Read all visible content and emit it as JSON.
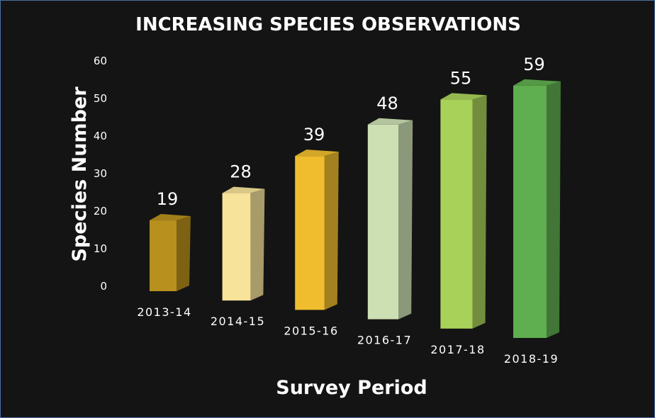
{
  "chart_data": {
    "type": "bar",
    "title": "INCREASING SPECIES OBSERVATIONS",
    "xlabel": "Survey Period",
    "ylabel": "Species Number",
    "ylim": [
      0,
      60
    ],
    "yticks": [
      "0",
      "10",
      "20",
      "30",
      "40",
      "50",
      "60"
    ],
    "categories": [
      "2013-14",
      "2014-15",
      "2015-16",
      "2016-17",
      "2017-18",
      "2018-19"
    ],
    "values": [
      19,
      28,
      39,
      48,
      55,
      59
    ],
    "value_labels": [
      "19",
      "28",
      "39",
      "48",
      "55",
      "59"
    ],
    "colors": [
      "#b8901e",
      "#f7e39a",
      "#f0bd2e",
      "#cde0b4",
      "#a8d15a",
      "#5fae4f"
    ],
    "grid": false,
    "style": "3d-column"
  }
}
